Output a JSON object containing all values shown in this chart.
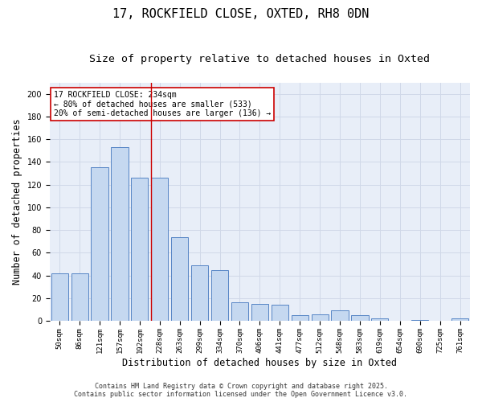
{
  "title": "17, ROCKFIELD CLOSE, OXTED, RH8 0DN",
  "subtitle": "Size of property relative to detached houses in Oxted",
  "xlabel": "Distribution of detached houses by size in Oxted",
  "ylabel": "Number of detached properties",
  "bar_labels": [
    "50sqm",
    "86sqm",
    "121sqm",
    "157sqm",
    "192sqm",
    "228sqm",
    "263sqm",
    "299sqm",
    "334sqm",
    "370sqm",
    "406sqm",
    "441sqm",
    "477sqm",
    "512sqm",
    "548sqm",
    "583sqm",
    "619sqm",
    "654sqm",
    "690sqm",
    "725sqm",
    "761sqm"
  ],
  "bar_values": [
    42,
    42,
    135,
    153,
    126,
    126,
    74,
    49,
    45,
    16,
    15,
    14,
    5,
    6,
    9,
    5,
    2,
    0,
    1,
    0,
    2
  ],
  "bar_color": "#c5d8f0",
  "bar_edge_color": "#5585c5",
  "vline_index": 5,
  "vline_color": "#cc0000",
  "annotation_line1": "17 ROCKFIELD CLOSE: 234sqm",
  "annotation_line2": "← 80% of detached houses are smaller (533)",
  "annotation_line3": "20% of semi-detached houses are larger (136) →",
  "annotation_box_color": "#ffffff",
  "annotation_box_edge": "#cc0000",
  "ylim": [
    0,
    210
  ],
  "yticks": [
    0,
    20,
    40,
    60,
    80,
    100,
    120,
    140,
    160,
    180,
    200
  ],
  "grid_color": "#d0d8e8",
  "bg_color": "#e8eef8",
  "footer_line1": "Contains HM Land Registry data © Crown copyright and database right 2025.",
  "footer_line2": "Contains public sector information licensed under the Open Government Licence v3.0.",
  "title_fontsize": 11,
  "subtitle_fontsize": 9.5,
  "tick_fontsize": 6.5,
  "ylabel_fontsize": 8.5,
  "xlabel_fontsize": 8.5,
  "annotation_fontsize": 7,
  "footer_fontsize": 6
}
